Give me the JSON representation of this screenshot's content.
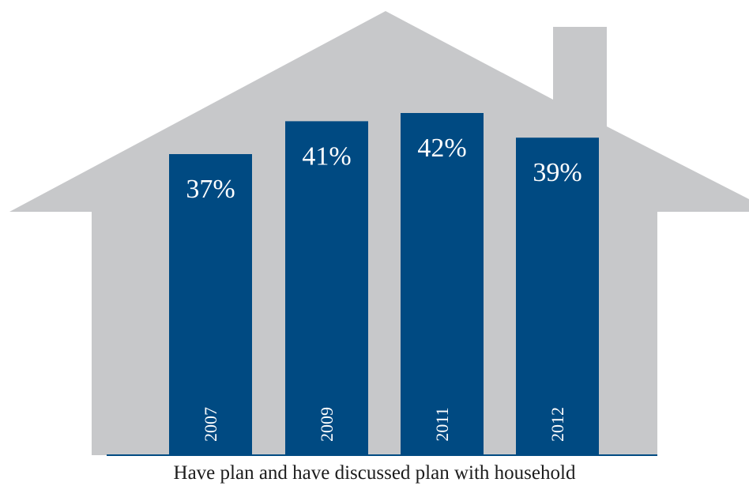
{
  "chart_data": {
    "type": "bar",
    "categories": [
      "2007",
      "2009",
      "2011",
      "2012"
    ],
    "values": [
      37,
      41,
      42,
      39
    ],
    "value_labels": [
      "37%",
      "41%",
      "42%",
      "39%"
    ],
    "caption": "Have plan and have discussed plan with household",
    "grid": false,
    "legend": "none",
    "colors": {
      "bar": "#004A82",
      "house": "#C7C8CA",
      "baseline": "#004A82",
      "bar_text": "#ffffff"
    }
  }
}
